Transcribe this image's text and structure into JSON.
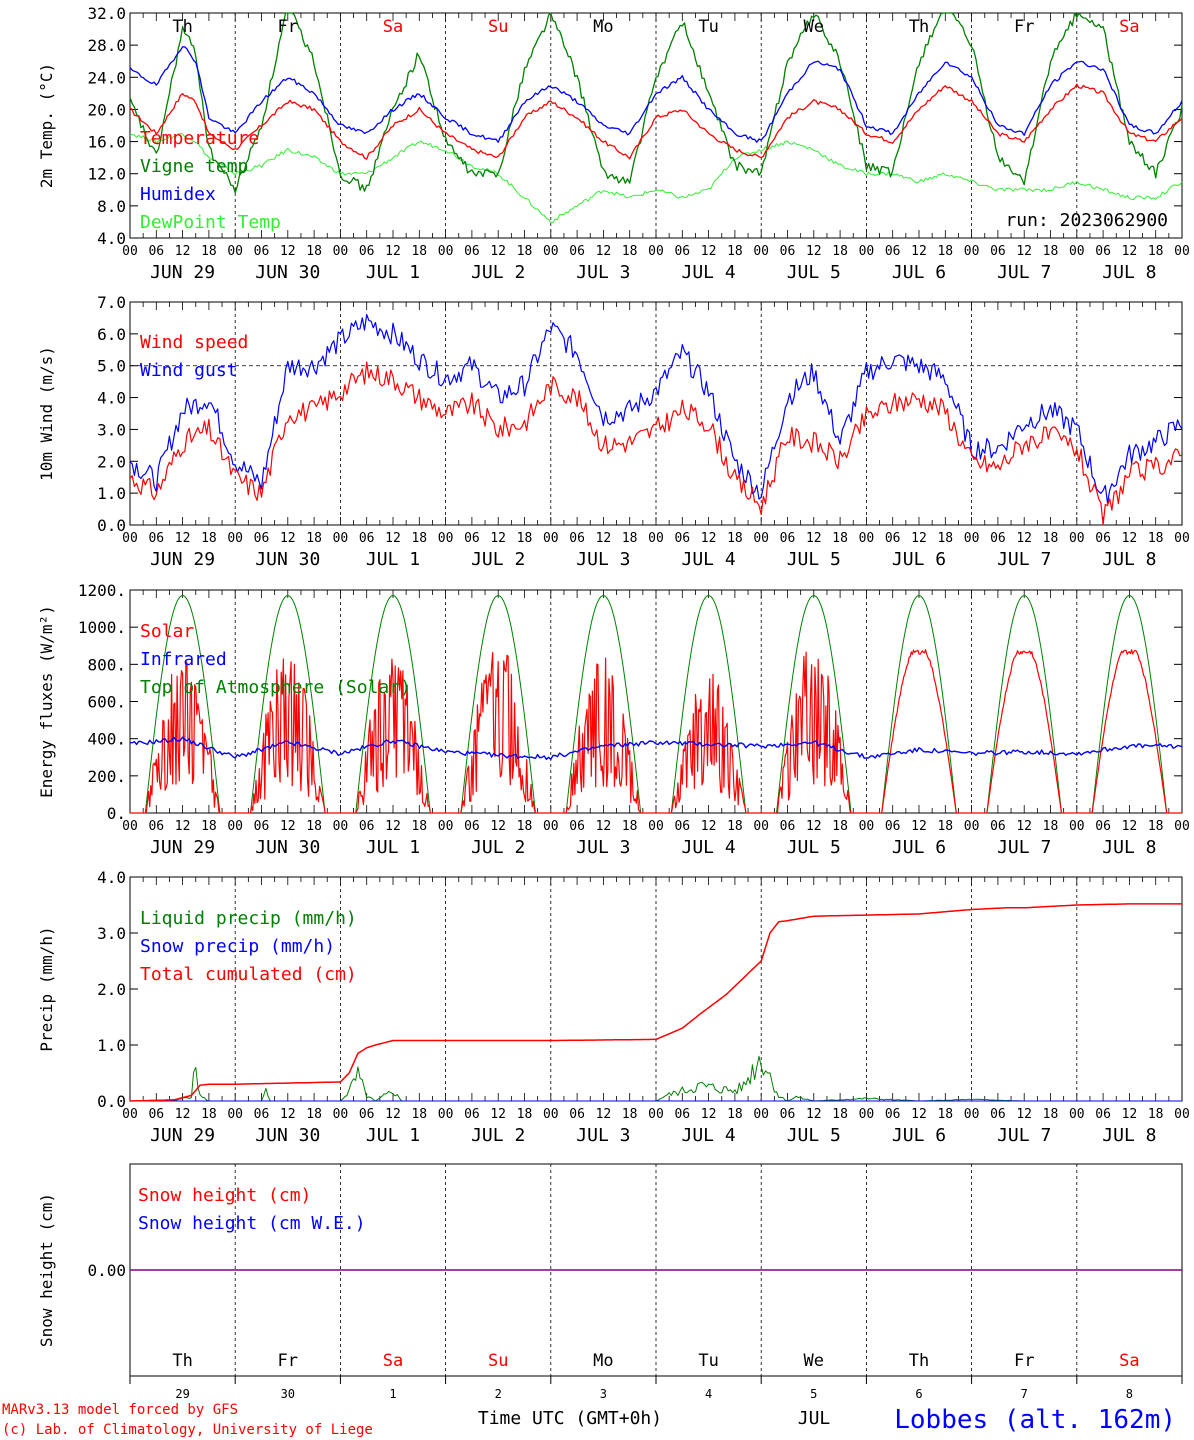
{
  "meta": {
    "run": "run: 2023062900",
    "credit_line1": "MARv3.13 model forced by GFS",
    "credit_line2": "(c) Lab. of Climatology, University of Liege",
    "xaxis_title": "Time UTC (GMT+0h)",
    "month_label": "JUL",
    "station": "Lobbes (alt. 162m)"
  },
  "axis": {
    "hour_ticks": [
      "00",
      "06",
      "12",
      "18"
    ],
    "hour_end": "00",
    "dates": [
      "JUN 29",
      "JUN 30",
      "JUL  1",
      "JUL  2",
      "JUL  3",
      "JUL  4",
      "JUL  5",
      "JUL  6",
      "JUL  7",
      "JUL  8"
    ],
    "weekdays": [
      "Th",
      "Fr",
      "Sa",
      "Su",
      "Mo",
      "Tu",
      "We",
      "Th",
      "Fr",
      "Sa"
    ],
    "weekend_flags": [
      false,
      false,
      true,
      true,
      false,
      false,
      false,
      false,
      false,
      true
    ],
    "day_numbers": [
      "29",
      "30",
      "1",
      "2",
      "3",
      "4",
      "5",
      "6",
      "7",
      "8"
    ]
  },
  "colors": {
    "red": "#ff0000",
    "green": "#008000",
    "blue": "#0000ff",
    "lightgreen": "#33ee33",
    "purple": "#800080",
    "black": "#000000"
  },
  "chart_data": [
    {
      "type": "line",
      "ylabel": "2m Temp. (°C)",
      "ylim": [
        4,
        32
      ],
      "yticks": [
        "4.0",
        "8.0",
        "12.0",
        "16.0",
        "20.0",
        "24.0",
        "28.0",
        "32.0"
      ],
      "x_unit": "hours since 2023-06-29 00 UTC",
      "x": [
        0,
        6,
        12,
        15,
        18,
        24,
        30,
        36,
        42,
        48,
        54,
        60,
        66,
        72,
        78,
        84,
        90,
        96,
        102,
        108,
        114,
        120,
        126,
        132,
        138,
        144,
        150,
        156,
        162,
        168,
        174,
        180,
        186,
        192,
        198,
        204,
        210,
        216,
        222,
        228,
        234,
        240
      ],
      "series": [
        {
          "name": "Temperature",
          "color": "red",
          "values": [
            20,
            17,
            22,
            21,
            17,
            15,
            18,
            21,
            20,
            16,
            14,
            18,
            20,
            17,
            15,
            14,
            19,
            21,
            19,
            16,
            14,
            19,
            20,
            17,
            15,
            14,
            19,
            21,
            20,
            17,
            16,
            20,
            23,
            21,
            17,
            16,
            20,
            23,
            22,
            17,
            16,
            19
          ]
        },
        {
          "name": "Vigne temp",
          "color": "green",
          "values": [
            21,
            14,
            30,
            27,
            15,
            10,
            18,
            33,
            26,
            12,
            10,
            20,
            27,
            16,
            12,
            12,
            25,
            32,
            24,
            12,
            11,
            24,
            31,
            22,
            13,
            12,
            26,
            32,
            26,
            13,
            12,
            26,
            33,
            28,
            14,
            11,
            26,
            32,
            30,
            16,
            12,
            20
          ]
        },
        {
          "name": "Humidex",
          "color": "blue",
          "values": [
            25,
            23,
            28,
            26,
            19,
            17,
            21,
            24,
            22,
            18,
            17,
            20,
            22,
            19,
            17,
            16,
            21,
            23,
            21,
            18,
            17,
            22,
            24,
            20,
            17,
            16,
            22,
            26,
            25,
            18,
            17,
            22,
            26,
            24,
            18,
            17,
            23,
            26,
            25,
            18,
            17,
            21
          ]
        },
        {
          "name": "DewPoint Temp",
          "color": "lightgreen",
          "values": [
            17,
            16,
            17,
            16,
            14,
            12,
            13,
            15,
            14,
            12,
            12,
            14,
            16,
            15,
            13,
            12,
            9,
            6,
            8,
            10,
            9,
            10,
            9,
            10,
            14,
            15,
            16,
            15,
            13,
            12,
            12,
            11,
            12,
            11,
            10,
            10,
            10,
            11,
            10,
            9,
            9,
            11
          ]
        }
      ]
    },
    {
      "type": "line",
      "ylabel": "10m Wind (m/s)",
      "ylim": [
        0,
        7
      ],
      "yticks": [
        "0.0",
        "1.0",
        "2.0",
        "3.0",
        "4.0",
        "5.0",
        "6.0",
        "7.0"
      ],
      "x_unit": "hours since 2023-06-29 00 UTC",
      "x": [
        0,
        6,
        12,
        18,
        24,
        30,
        36,
        42,
        48,
        54,
        60,
        66,
        72,
        78,
        84,
        90,
        96,
        102,
        108,
        114,
        120,
        126,
        132,
        138,
        144,
        150,
        156,
        162,
        168,
        174,
        180,
        186,
        192,
        198,
        204,
        210,
        216,
        222,
        228,
        234,
        240
      ],
      "series": [
        {
          "name": "Wind speed",
          "color": "red",
          "values": [
            1.5,
            1.0,
            2.6,
            3.0,
            1.5,
            1.0,
            3.5,
            3.6,
            4.2,
            4.8,
            4.6,
            4.0,
            3.5,
            3.8,
            3.0,
            3.2,
            4.4,
            4.0,
            2.5,
            2.6,
            3.0,
            3.6,
            3.2,
            1.4,
            0.6,
            2.8,
            2.6,
            2.0,
            3.4,
            3.8,
            4.0,
            3.6,
            2.0,
            1.8,
            2.6,
            2.8,
            2.4,
            0.2,
            1.6,
            1.8,
            2.2
          ]
        },
        {
          "name": "Wind gust",
          "color": "blue",
          "values": [
            2.0,
            1.4,
            3.6,
            4.0,
            2.0,
            1.3,
            5.0,
            5.0,
            5.8,
            6.4,
            6.0,
            5.2,
            4.6,
            5.0,
            4.0,
            4.4,
            6.2,
            5.4,
            3.4,
            3.6,
            4.2,
            5.4,
            4.2,
            2.0,
            1.0,
            4.0,
            4.8,
            2.6,
            4.8,
            5.2,
            5.0,
            4.6,
            2.4,
            2.4,
            3.2,
            3.6,
            3.0,
            0.8,
            2.2,
            2.6,
            3.2
          ]
        }
      ]
    },
    {
      "type": "line",
      "ylabel": "Energy fluxes (W/m²)",
      "ylim": [
        0,
        1200
      ],
      "yticks": [
        "0.",
        "200.",
        "400.",
        "600.",
        "800.",
        "1000.",
        "1200."
      ],
      "series": [
        {
          "name": "Solar",
          "color": "red",
          "daily_peak": [
            820,
            840,
            850,
            880,
            880,
            760,
            880,
            880,
            880,
            880
          ]
        },
        {
          "name": "Infrared",
          "color": "blue",
          "x": [
            0,
            12,
            24,
            36,
            48,
            60,
            72,
            84,
            96,
            108,
            120,
            132,
            144,
            156,
            168,
            180,
            192,
            204,
            216,
            228,
            240
          ],
          "values": [
            370,
            400,
            300,
            380,
            320,
            390,
            330,
            310,
            300,
            360,
            380,
            370,
            360,
            380,
            300,
            340,
            320,
            330,
            320,
            360,
            360
          ]
        },
        {
          "name": "Top of Atmosphere (Solar)",
          "color": "green",
          "daily_peak": [
            1170,
            1170,
            1170,
            1170,
            1170,
            1170,
            1170,
            1170,
            1170,
            1170
          ]
        }
      ]
    },
    {
      "type": "line",
      "ylabel": "Precip (mm/h)",
      "ylim": [
        0,
        4
      ],
      "yticks": [
        "0.0",
        "1.0",
        "2.0",
        "3.0",
        "4.0"
      ],
      "x_unit": "hours since 2023-06-29 00 UTC",
      "series": [
        {
          "name": "Liquid precip (mm/h)",
          "color": "green",
          "x": [
            0,
            10,
            14,
            15,
            16,
            18,
            30,
            31,
            32,
            48,
            50,
            52,
            54,
            56,
            60,
            62,
            64,
            96,
            120,
            122,
            126,
            130,
            134,
            138,
            140,
            142,
            144,
            146,
            148,
            150,
            152,
            156,
            168,
            180,
            192,
            204,
            216,
            228,
            240
          ],
          "values": [
            0,
            0,
            0.1,
            0.7,
            0.1,
            0,
            0,
            0.2,
            0,
            0,
            0.2,
            0.5,
            0.1,
            0,
            0.2,
            0,
            0,
            0,
            0,
            0.1,
            0.2,
            0.3,
            0.25,
            0.2,
            0.3,
            0.6,
            0.9,
            0.5,
            0.1,
            0,
            0.08,
            0,
            0.05,
            0,
            0.03,
            0,
            0,
            0,
            0
          ]
        },
        {
          "name": "Snow precip (mm/h)",
          "color": "blue",
          "x": [
            0,
            240
          ],
          "values": [
            0,
            0
          ]
        },
        {
          "name": "Total cumulated (cm)",
          "color": "red",
          "x": [
            0,
            10,
            14,
            16,
            18,
            24,
            36,
            48,
            50,
            52,
            54,
            56,
            60,
            72,
            96,
            120,
            126,
            130,
            136,
            140,
            144,
            146,
            148,
            150,
            156,
            168,
            180,
            192,
            200,
            204,
            216,
            228,
            240
          ],
          "values": [
            0,
            0.02,
            0.1,
            0.28,
            0.3,
            0.3,
            0.32,
            0.34,
            0.5,
            0.85,
            0.95,
            1.0,
            1.08,
            1.08,
            1.08,
            1.1,
            1.3,
            1.55,
            1.9,
            2.2,
            2.5,
            3.0,
            3.2,
            3.22,
            3.3,
            3.32,
            3.34,
            3.42,
            3.45,
            3.45,
            3.5,
            3.52,
            3.52
          ]
        }
      ]
    },
    {
      "type": "line",
      "ylabel": "Snow height (cm)",
      "yticks": [
        "0.00"
      ],
      "series": [
        {
          "name": "Snow height (cm)",
          "color": "red",
          "x": [
            0,
            240
          ],
          "values": [
            0,
            0
          ]
        },
        {
          "name": "Snow height (cm W.E.)",
          "color": "blue",
          "x": [
            0,
            240
          ],
          "values": [
            0,
            0
          ]
        }
      ]
    }
  ]
}
